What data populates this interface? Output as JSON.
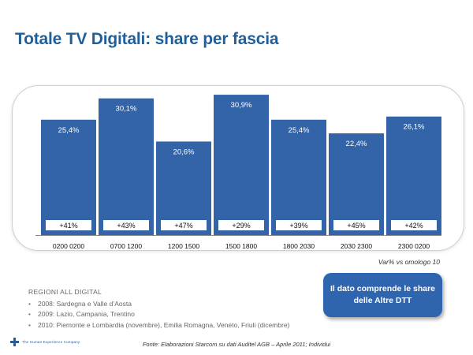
{
  "title": "Totale TV Digitali: share per fascia",
  "chart_data": {
    "type": "bar",
    "categories": [
      "0200 0200",
      "0700 1200",
      "1200 1500",
      "1500 1800",
      "1800 2030",
      "2030 2300",
      "2300 0200"
    ],
    "values": [
      25.4,
      30.1,
      20.6,
      30.9,
      25.4,
      22.4,
      26.1
    ],
    "value_labels": [
      "25,4%",
      "30,1%",
      "20,6%",
      "30,9%",
      "25,4%",
      "22,4%",
      "26,1%"
    ],
    "var_labels": [
      "+41%",
      "+43%",
      "+47%",
      "+29%",
      "+39%",
      "+45%",
      "+42%"
    ],
    "ylim": [
      0,
      33
    ],
    "bar_color": "#3464a8",
    "note": "Var% vs omologo 10"
  },
  "regions": {
    "title": "REGIONI ALL DIGITAL",
    "items": [
      "2008: Sardegna e Valle d’Aosta",
      "2009: Lazio, Campania, Trentino",
      "2010: Piemonte e Lombardia (novembre), Emilia Romagna, Veneto, Friuli (dicembre)"
    ]
  },
  "callout": "Il dato comprende le share delle Altre DTT",
  "source": "Fonte: Elaborazioni Starcom su dati Auditel AGB – Aprile 2011; Individui",
  "logo_text": "The Human Experience Company",
  "colors": {
    "title": "#1f5f9a",
    "accent": "#2f64ae"
  }
}
